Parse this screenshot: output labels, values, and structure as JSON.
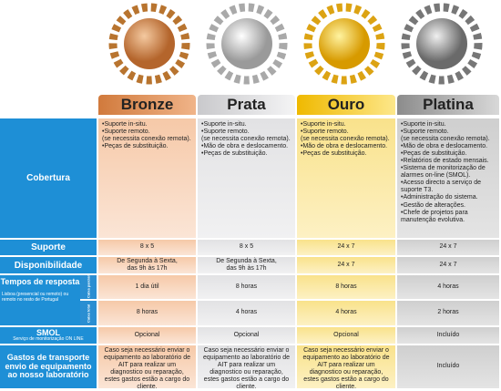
{
  "plans": [
    {
      "name": "Bronze",
      "accent": "#c9793a"
    },
    {
      "name": "Prata",
      "accent": "#a7a7aa"
    },
    {
      "name": "Ouro",
      "accent": "#e8b019"
    },
    {
      "name": "Platina",
      "accent": "#7d7d7d"
    }
  ],
  "labels": {
    "cobertura": "Cobertura",
    "suporte": "Suporte",
    "disponibilidade": "Disponibilidade",
    "tempos_title": "Tempos de resposta",
    "tempos_sub": "Lisboa (presencial ou remoto) ou remoto no resto de Portugal",
    "caixa_parcial": "Caixa parcial",
    "caixa_total": "Caixa total",
    "smol": "SMOL",
    "smol_sub": "Serviço de monitorização ON LINE",
    "gastos": "Gastos de transporte envio de equipamento ao nosso laboratório"
  },
  "cobertura": [
    [
      "•Suporte in-situ.",
      "•Suporte remoto.",
      "(se necessita conexão remota).",
      "•Peças de substituição."
    ],
    [
      "•Suporte in-situ.",
      "•Suporte remoto.",
      "(se necessita conexão remota).",
      "•Mão de obra e deslocamento.",
      "•Peças de substituição."
    ],
    [
      "•Suporte in-situ.",
      "•Suporte remoto.",
      "(se necessita conexão remota).",
      "•Mão de obra e deslocamento.",
      "•Peças de substituição."
    ],
    [
      "•Suporte in-situ.",
      "•Suporte remoto.",
      "(se necessita conexão remota).",
      "•Mão de obra e deslocamento.",
      "•Peças de substituição.",
      "•Relatórios de estado mensais.",
      "•Sistema de monitorização de",
      "alarmes on-line (SMOL).",
      "•Acesso directo a serviço de",
      "suporte T3.",
      "•Administração do sistema.",
      "•Gestão de alterações.",
      "•Chefe de projetos para",
      "manutenção evolutiva."
    ]
  ],
  "suporte": [
    "8 x 5",
    "8 x 5",
    "24 x 7",
    "24 x 7"
  ],
  "disponibilidade": [
    "De Segunda à Sexta, das 9h às 17h",
    "De Segunda à Sexta, das 9h às 17h",
    "24 x 7",
    "24 x 7"
  ],
  "tempo_parcial": [
    "1 dia útil",
    "8 horas",
    "8 horas",
    "4 horas"
  ],
  "tempo_total": [
    "8 horas",
    "4 horas",
    "4 horas",
    "2 horas"
  ],
  "smol": [
    "Opcional",
    "Opcional",
    "Opcional",
    "Incluído"
  ],
  "gastos": [
    "Caso seja necessário enviar o equipamento ao laboratório de AIT para realizar um diagnostico ou reparação, estes gastos estão a cargo do cliente.",
    "Caso seja necessário enviar o equipamento ao laboratório de AIT para realizar um diagnostico ou reparação, estes gastos estão a cargo do cliente.",
    "Caso seja necessário enviar o equipamento ao laboratório de AIT para realizar um diagnostico ou reparação, estes gastos estão a cargo do cliente.",
    "Incluído"
  ]
}
